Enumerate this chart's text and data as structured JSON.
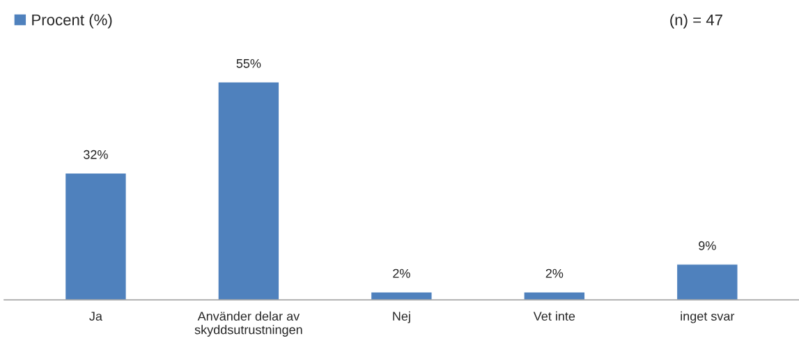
{
  "chart_data": {
    "type": "bar",
    "categories": [
      "Ja",
      "Använder delar av\nskyddsutrustningen",
      "Nej",
      "Vet inte",
      "inget svar"
    ],
    "series": [
      {
        "name": "Procent (%)",
        "color": "#4f81bd",
        "values": [
          32,
          55,
          2,
          2,
          9
        ],
        "value_labels": [
          "32%",
          "55%",
          "2%",
          "2%",
          "9%"
        ]
      }
    ],
    "annotations": [
      "(n) = 47"
    ],
    "legend": "top left",
    "grid": false
  }
}
